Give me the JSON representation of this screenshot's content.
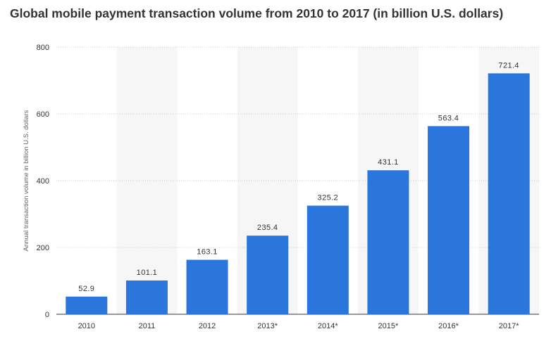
{
  "chart_data": {
    "type": "bar",
    "title": "Global mobile payment transaction volume from 2010 to 2017 (in billion U.S. dollars)",
    "xlabel": "",
    "ylabel": "Annual transaction volume in billion U.S. dollars",
    "categories": [
      "2010",
      "2011",
      "2012",
      "2013*",
      "2014*",
      "2015*",
      "2016*",
      "2017*"
    ],
    "values": [
      52.9,
      101.1,
      163.1,
      235.4,
      325.2,
      431.1,
      563.4,
      721.4
    ],
    "data_labels": [
      "52.9",
      "101.1",
      "163.1",
      "235.4",
      "325.2",
      "431.1",
      "563.4",
      "721.4"
    ],
    "ylim": [
      0,
      800
    ],
    "yticks": [
      "0",
      "200",
      "400",
      "600",
      "800"
    ],
    "grid": true,
    "alternating_band_shading": true,
    "legend": "none",
    "bar_color": "#2a76dd",
    "band_color": "#f6f6f6",
    "grid_color": "#cccccc"
  }
}
